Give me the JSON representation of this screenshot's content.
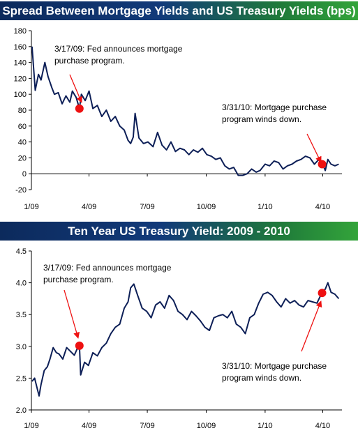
{
  "colors": {
    "line": "#0d1f57",
    "marker": "#ee1111",
    "arrow": "#ee1111",
    "axis": "#000000"
  },
  "chart_data": [
    {
      "type": "line",
      "title": "Spread Between Mortgage Yields and US Treasury Yields (bps)",
      "xlabel": "",
      "ylabel": "",
      "ylim": [
        -20,
        180
      ],
      "yticks": [
        "180",
        "160",
        "140",
        "120",
        "100",
        "80",
        "60",
        "40",
        "20",
        "0",
        "-20"
      ],
      "yticks_values": [
        180,
        160,
        140,
        120,
        100,
        80,
        60,
        40,
        20,
        0,
        -20
      ],
      "xticks": [
        "1/09",
        "4/09",
        "7/09",
        "10/09",
        "1/10",
        "4/10"
      ],
      "series": [
        {
          "x": [
            "2009-01-02",
            "2009-01-07",
            "2009-01-12",
            "2009-01-16",
            "2009-01-22",
            "2009-01-27",
            "2009-02-02",
            "2009-02-06",
            "2009-02-12",
            "2009-02-18",
            "2009-02-24",
            "2009-03-02",
            "2009-03-06",
            "2009-03-12",
            "2009-03-17",
            "2009-03-20",
            "2009-03-26",
            "2009-04-01",
            "2009-04-07",
            "2009-04-14",
            "2009-04-21",
            "2009-04-28",
            "2009-05-05",
            "2009-05-12",
            "2009-05-19",
            "2009-05-26",
            "2009-06-01",
            "2009-06-05",
            "2009-06-09",
            "2009-06-12",
            "2009-06-18",
            "2009-06-25",
            "2009-07-02",
            "2009-07-10",
            "2009-07-17",
            "2009-07-24",
            "2009-07-31",
            "2009-08-07",
            "2009-08-14",
            "2009-08-21",
            "2009-08-28",
            "2009-09-04",
            "2009-09-11",
            "2009-09-18",
            "2009-09-25",
            "2009-10-02",
            "2009-10-09",
            "2009-10-16",
            "2009-10-23",
            "2009-10-30",
            "2009-11-06",
            "2009-11-13",
            "2009-11-20",
            "2009-11-27",
            "2009-12-04",
            "2009-12-11",
            "2009-12-18",
            "2009-12-24",
            "2010-01-01",
            "2010-01-08",
            "2010-01-15",
            "2010-01-22",
            "2010-01-29",
            "2010-02-05",
            "2010-02-12",
            "2010-02-19",
            "2010-02-26",
            "2010-03-05",
            "2010-03-12",
            "2010-03-19",
            "2010-03-26",
            "2010-03-31",
            "2010-04-05",
            "2010-04-09",
            "2010-04-14",
            "2010-04-20",
            "2010-04-26"
          ],
          "values": [
            160,
            105,
            125,
            118,
            140,
            122,
            108,
            100,
            102,
            88,
            98,
            90,
            104,
            96,
            82,
            100,
            92,
            104,
            82,
            86,
            72,
            80,
            66,
            72,
            60,
            55,
            42,
            38,
            46,
            76,
            45,
            38,
            40,
            34,
            52,
            36,
            30,
            40,
            28,
            32,
            30,
            24,
            30,
            27,
            32,
            24,
            22,
            18,
            20,
            10,
            6,
            8,
            -2,
            -2,
            0,
            6,
            2,
            4,
            12,
            10,
            16,
            14,
            6,
            10,
            12,
            16,
            18,
            22,
            20,
            12,
            18,
            14,
            4,
            18,
            12,
            10,
            12
          ]
        }
      ],
      "markers": [
        {
          "x": "2009-03-17",
          "y": 82
        },
        {
          "x": "2010-03-31",
          "y": 12
        }
      ],
      "annotations": [
        {
          "lines": [
            "3/17/09: Fed announces mortgage",
            "purchase program."
          ]
        },
        {
          "lines": [
            "3/31/10: Mortgage purchase",
            "program winds down."
          ]
        }
      ]
    },
    {
      "type": "line",
      "title": "Ten Year US Treasury Yield: 2009 - 2010",
      "xlabel": "",
      "ylabel": "",
      "ylim": [
        2.0,
        4.5
      ],
      "yticks": [
        "4.5",
        "4.0",
        "3.5",
        "3.0",
        "2.5",
        "2.0"
      ],
      "yticks_values": [
        4.5,
        4.0,
        3.5,
        3.0,
        2.5,
        2.0
      ],
      "xticks": [
        "1/09",
        "4/09",
        "7/09",
        "10/09",
        "1/10",
        "4/10"
      ],
      "series": [
        {
          "x": [
            "2009-01-02",
            "2009-01-06",
            "2009-01-09",
            "2009-01-13",
            "2009-01-16",
            "2009-01-21",
            "2009-01-26",
            "2009-01-30",
            "2009-02-04",
            "2009-02-09",
            "2009-02-13",
            "2009-02-19",
            "2009-02-25",
            "2009-03-03",
            "2009-03-09",
            "2009-03-13",
            "2009-03-17",
            "2009-03-19",
            "2009-03-25",
            "2009-03-31",
            "2009-04-07",
            "2009-04-14",
            "2009-04-21",
            "2009-04-28",
            "2009-05-05",
            "2009-05-12",
            "2009-05-19",
            "2009-05-26",
            "2009-06-01",
            "2009-06-05",
            "2009-06-10",
            "2009-06-16",
            "2009-06-23",
            "2009-06-30",
            "2009-07-07",
            "2009-07-14",
            "2009-07-21",
            "2009-07-28",
            "2009-08-04",
            "2009-08-11",
            "2009-08-18",
            "2009-08-25",
            "2009-09-01",
            "2009-09-08",
            "2009-09-15",
            "2009-09-22",
            "2009-09-29",
            "2009-10-06",
            "2009-10-13",
            "2009-10-20",
            "2009-10-27",
            "2009-11-03",
            "2009-11-10",
            "2009-11-17",
            "2009-11-24",
            "2009-12-01",
            "2009-12-08",
            "2009-12-15",
            "2009-12-22",
            "2009-12-29",
            "2010-01-05",
            "2010-01-12",
            "2010-01-19",
            "2010-01-26",
            "2010-02-02",
            "2010-02-09",
            "2010-02-16",
            "2010-02-23",
            "2010-03-02",
            "2010-03-09",
            "2010-03-16",
            "2010-03-23",
            "2010-03-31",
            "2010-04-05",
            "2010-04-09",
            "2010-04-14",
            "2010-04-20",
            "2010-04-26"
          ],
          "values": [
            2.45,
            2.5,
            2.38,
            2.22,
            2.4,
            2.62,
            2.68,
            2.8,
            2.98,
            2.9,
            2.88,
            2.8,
            2.98,
            2.92,
            2.86,
            2.95,
            3.02,
            2.55,
            2.75,
            2.7,
            2.9,
            2.85,
            2.98,
            3.05,
            3.2,
            3.3,
            3.35,
            3.6,
            3.7,
            3.92,
            3.98,
            3.8,
            3.6,
            3.55,
            3.45,
            3.65,
            3.7,
            3.6,
            3.8,
            3.72,
            3.55,
            3.5,
            3.42,
            3.55,
            3.48,
            3.4,
            3.3,
            3.25,
            3.45,
            3.48,
            3.5,
            3.45,
            3.55,
            3.35,
            3.3,
            3.2,
            3.45,
            3.5,
            3.68,
            3.82,
            3.85,
            3.8,
            3.7,
            3.62,
            3.75,
            3.68,
            3.72,
            3.65,
            3.62,
            3.72,
            3.7,
            3.68,
            3.85,
            3.9,
            4.0,
            3.85,
            3.82,
            3.75
          ]
        }
      ],
      "markers": [
        {
          "x": "2009-03-17",
          "y": 3.01
        },
        {
          "x": "2010-03-31",
          "y": 3.84
        }
      ],
      "annotations": [
        {
          "lines": [
            "3/17/09: Fed announces mortgage",
            "purchase program."
          ]
        },
        {
          "lines": [
            "3/31/10: Mortgage purchase",
            "program winds down."
          ]
        }
      ]
    }
  ]
}
